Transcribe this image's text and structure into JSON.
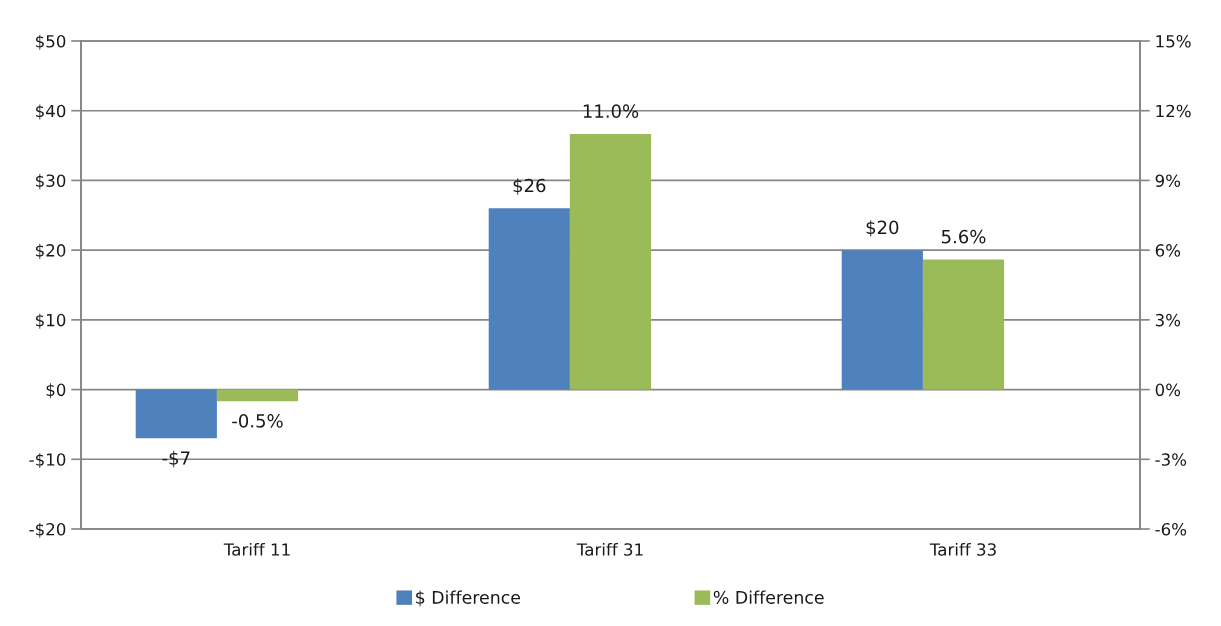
{
  "chart_data": {
    "type": "bar",
    "categories": [
      "Tariff 11",
      "Tariff 31",
      "Tariff 33"
    ],
    "series": [
      {
        "name": "$ Difference",
        "color": "#4f81bd",
        "values": [
          -7,
          26,
          20
        ],
        "value_labels": [
          "-$7",
          "$26",
          "$20"
        ]
      },
      {
        "name": "% Difference",
        "color": "#9bbb59",
        "axis": "y2",
        "values": [
          -0.5,
          11.0,
          5.6
        ],
        "value_labels": [
          "-0.5%",
          "11.0%",
          "5.6%"
        ]
      }
    ],
    "ylim": [
      -20,
      50
    ],
    "yticks": [
      {
        "value": -20,
        "label": "-$20"
      },
      {
        "value": -10,
        "label": "-$10"
      },
      {
        "value": 0,
        "label": "$0"
      },
      {
        "value": 10,
        "label": "$10"
      },
      {
        "value": 20,
        "label": "$20"
      },
      {
        "value": 30,
        "label": "$30"
      },
      {
        "value": 40,
        "label": "$40"
      },
      {
        "value": 50,
        "label": "$50"
      }
    ],
    "y2lim": [
      -6,
      15
    ],
    "y2ticks": [
      {
        "value": -6,
        "label": "-6%"
      },
      {
        "value": -3,
        "label": "-3%"
      },
      {
        "value": 0,
        "label": "0%"
      },
      {
        "value": 3,
        "label": "3%"
      },
      {
        "value": 6,
        "label": "6%"
      },
      {
        "value": 9,
        "label": "9%"
      },
      {
        "value": 12,
        "label": "12%"
      },
      {
        "value": 15,
        "label": "15%"
      }
    ],
    "grid": "y",
    "legend": "bottom"
  }
}
